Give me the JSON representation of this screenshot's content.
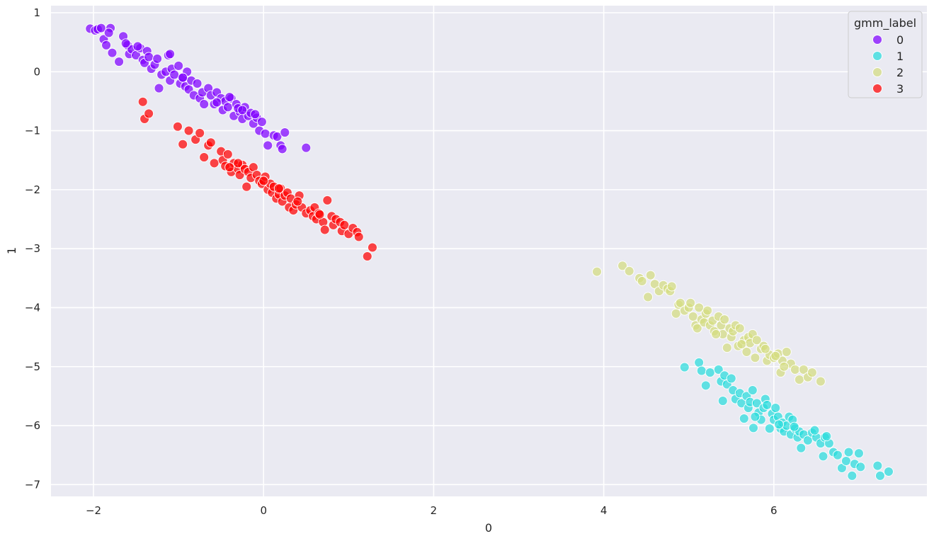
{
  "chart_data": {
    "type": "scatter",
    "xlabel": "0",
    "ylabel": "1",
    "xlim": [
      -2.5,
      7.8
    ],
    "ylim": [
      -7.2,
      1.12
    ],
    "xticks": [
      -2,
      0,
      2,
      4,
      6
    ],
    "yticks": [
      1,
      0,
      -1,
      -2,
      -3,
      -4,
      -5,
      -6,
      -7
    ],
    "grid": true,
    "legend": {
      "title": "gmm_label",
      "placement": "top-right"
    },
    "series": [
      {
        "name": "0",
        "color": "#8000ff",
        "points": [
          [
            -2.04,
            0.73
          ],
          [
            -1.98,
            0.7
          ],
          [
            -1.95,
            0.72
          ],
          [
            -1.91,
            0.74
          ],
          [
            -1.88,
            0.55
          ],
          [
            -1.85,
            0.45
          ],
          [
            -1.8,
            0.74
          ],
          [
            -1.78,
            0.32
          ],
          [
            -1.82,
            0.66
          ],
          [
            -1.7,
            0.17
          ],
          [
            -1.65,
            0.6
          ],
          [
            -1.6,
            0.45
          ],
          [
            -1.58,
            0.3
          ],
          [
            -1.55,
            0.38
          ],
          [
            -1.5,
            0.28
          ],
          [
            -1.45,
            0.4
          ],
          [
            -1.42,
            0.2
          ],
          [
            -1.4,
            0.15
          ],
          [
            -1.37,
            0.35
          ],
          [
            -1.35,
            0.25
          ],
          [
            -1.32,
            0.05
          ],
          [
            -1.28,
            0.12
          ],
          [
            -1.25,
            0.22
          ],
          [
            -1.23,
            -0.28
          ],
          [
            -1.2,
            -0.05
          ],
          [
            -1.15,
            0.0
          ],
          [
            -1.12,
            0.28
          ],
          [
            -1.1,
            -0.15
          ],
          [
            -1.08,
            0.05
          ],
          [
            -1.05,
            -0.05
          ],
          [
            -1.0,
            0.1
          ],
          [
            -0.98,
            -0.2
          ],
          [
            -0.95,
            -0.1
          ],
          [
            -0.92,
            -0.25
          ],
          [
            -0.9,
            0.0
          ],
          [
            -0.88,
            -0.3
          ],
          [
            -0.85,
            -0.15
          ],
          [
            -0.82,
            -0.4
          ],
          [
            -0.78,
            -0.2
          ],
          [
            -0.75,
            -0.45
          ],
          [
            -0.72,
            -0.35
          ],
          [
            -0.7,
            -0.55
          ],
          [
            -0.65,
            -0.28
          ],
          [
            -0.62,
            -0.4
          ],
          [
            -0.58,
            -0.55
          ],
          [
            -0.55,
            -0.35
          ],
          [
            -0.5,
            -0.45
          ],
          [
            -0.48,
            -0.65
          ],
          [
            -0.45,
            -0.5
          ],
          [
            -0.42,
            -0.6
          ],
          [
            -0.38,
            -0.45
          ],
          [
            -0.35,
            -0.75
          ],
          [
            -0.32,
            -0.55
          ],
          [
            -0.28,
            -0.68
          ],
          [
            -0.25,
            -0.8
          ],
          [
            -0.22,
            -0.6
          ],
          [
            -0.18,
            -0.75
          ],
          [
            -0.15,
            -0.7
          ],
          [
            -0.12,
            -0.88
          ],
          [
            -0.08,
            -0.78
          ],
          [
            -0.05,
            -1.0
          ],
          [
            -0.02,
            -0.85
          ],
          [
            0.02,
            -1.05
          ],
          [
            0.05,
            -1.25
          ],
          [
            0.12,
            -1.08
          ],
          [
            0.16,
            -1.1
          ],
          [
            0.2,
            -1.25
          ],
          [
            0.22,
            -1.31
          ],
          [
            0.25,
            -1.03
          ],
          [
            0.5,
            -1.29
          ],
          [
            -0.4,
            -0.43
          ],
          [
            -0.3,
            -0.62
          ],
          [
            -1.1,
            0.3
          ],
          [
            -1.48,
            0.43
          ],
          [
            -1.62,
            0.48
          ],
          [
            -0.95,
            -0.1
          ],
          [
            -0.55,
            -0.52
          ],
          [
            -0.25,
            -0.65
          ],
          [
            -0.1,
            -0.72
          ]
        ]
      },
      {
        "name": "1",
        "color": "#2adddd",
        "points": [
          [
            4.95,
            -5.01
          ],
          [
            5.12,
            -4.93
          ],
          [
            5.15,
            -5.07
          ],
          [
            5.2,
            -5.32
          ],
          [
            5.25,
            -5.1
          ],
          [
            5.35,
            -5.05
          ],
          [
            5.38,
            -5.25
          ],
          [
            5.4,
            -5.58
          ],
          [
            5.42,
            -5.15
          ],
          [
            5.45,
            -5.3
          ],
          [
            5.5,
            -5.2
          ],
          [
            5.52,
            -5.4
          ],
          [
            5.55,
            -5.55
          ],
          [
            5.6,
            -5.45
          ],
          [
            5.62,
            -5.62
          ],
          [
            5.65,
            -5.88
          ],
          [
            5.68,
            -5.5
          ],
          [
            5.7,
            -5.7
          ],
          [
            5.72,
            -5.6
          ],
          [
            5.75,
            -5.4
          ],
          [
            5.76,
            -6.04
          ],
          [
            5.8,
            -5.62
          ],
          [
            5.82,
            -5.78
          ],
          [
            5.85,
            -5.9
          ],
          [
            5.88,
            -5.7
          ],
          [
            5.9,
            -5.55
          ],
          [
            5.92,
            -5.65
          ],
          [
            5.95,
            -6.05
          ],
          [
            5.98,
            -5.8
          ],
          [
            6.0,
            -5.9
          ],
          [
            6.02,
            -5.7
          ],
          [
            6.05,
            -5.85
          ],
          [
            6.08,
            -6.05
          ],
          [
            6.1,
            -5.95
          ],
          [
            6.12,
            -6.1
          ],
          [
            6.15,
            -6.0
          ],
          [
            6.18,
            -5.85
          ],
          [
            6.2,
            -6.15
          ],
          [
            6.22,
            -5.9
          ],
          [
            6.25,
            -6.05
          ],
          [
            6.28,
            -6.2
          ],
          [
            6.3,
            -6.1
          ],
          [
            6.32,
            -6.38
          ],
          [
            6.35,
            -6.15
          ],
          [
            6.4,
            -6.25
          ],
          [
            6.45,
            -6.12
          ],
          [
            6.5,
            -6.2
          ],
          [
            6.55,
            -6.3
          ],
          [
            6.58,
            -6.52
          ],
          [
            6.6,
            -6.2
          ],
          [
            6.65,
            -6.3
          ],
          [
            6.7,
            -6.45
          ],
          [
            6.75,
            -6.5
          ],
          [
            6.8,
            -6.72
          ],
          [
            6.85,
            -6.6
          ],
          [
            6.88,
            -6.45
          ],
          [
            6.92,
            -6.85
          ],
          [
            6.95,
            -6.65
          ],
          [
            7.0,
            -6.47
          ],
          [
            7.02,
            -6.7
          ],
          [
            7.22,
            -6.68
          ],
          [
            7.25,
            -6.85
          ],
          [
            7.35,
            -6.78
          ],
          [
            5.78,
            -5.85
          ],
          [
            6.06,
            -5.98
          ],
          [
            6.24,
            -6.02
          ],
          [
            6.48,
            -6.08
          ],
          [
            6.62,
            -6.18
          ]
        ]
      },
      {
        "name": "2",
        "color": "#d4dd80",
        "points": [
          [
            3.92,
            -3.39
          ],
          [
            4.22,
            -3.29
          ],
          [
            4.3,
            -3.38
          ],
          [
            4.42,
            -3.5
          ],
          [
            4.45,
            -3.55
          ],
          [
            4.52,
            -3.82
          ],
          [
            4.55,
            -3.45
          ],
          [
            4.6,
            -3.6
          ],
          [
            4.65,
            -3.72
          ],
          [
            4.7,
            -3.62
          ],
          [
            4.75,
            -3.68
          ],
          [
            4.78,
            -3.72
          ],
          [
            4.8,
            -3.64
          ],
          [
            4.85,
            -4.1
          ],
          [
            4.88,
            -3.95
          ],
          [
            4.9,
            -3.92
          ],
          [
            4.95,
            -4.05
          ],
          [
            5.0,
            -4.0
          ],
          [
            5.02,
            -3.92
          ],
          [
            5.05,
            -4.15
          ],
          [
            5.08,
            -4.3
          ],
          [
            5.1,
            -4.35
          ],
          [
            5.12,
            -4.0
          ],
          [
            5.15,
            -4.2
          ],
          [
            5.18,
            -4.25
          ],
          [
            5.2,
            -4.1
          ],
          [
            5.22,
            -4.05
          ],
          [
            5.25,
            -4.3
          ],
          [
            5.28,
            -4.22
          ],
          [
            5.3,
            -4.4
          ],
          [
            5.35,
            -4.15
          ],
          [
            5.38,
            -4.3
          ],
          [
            5.4,
            -4.45
          ],
          [
            5.42,
            -4.2
          ],
          [
            5.45,
            -4.68
          ],
          [
            5.48,
            -4.35
          ],
          [
            5.5,
            -4.5
          ],
          [
            5.52,
            -4.4
          ],
          [
            5.55,
            -4.3
          ],
          [
            5.58,
            -4.65
          ],
          [
            5.6,
            -4.35
          ],
          [
            5.65,
            -4.55
          ],
          [
            5.68,
            -4.75
          ],
          [
            5.7,
            -4.5
          ],
          [
            5.72,
            -4.6
          ],
          [
            5.75,
            -4.45
          ],
          [
            5.78,
            -4.85
          ],
          [
            5.8,
            -4.55
          ],
          [
            5.85,
            -4.7
          ],
          [
            5.88,
            -4.65
          ],
          [
            5.92,
            -4.9
          ],
          [
            5.95,
            -4.8
          ],
          [
            6.0,
            -4.85
          ],
          [
            6.05,
            -4.78
          ],
          [
            6.08,
            -5.1
          ],
          [
            6.1,
            -4.9
          ],
          [
            6.15,
            -4.75
          ],
          [
            6.2,
            -4.95
          ],
          [
            6.25,
            -5.05
          ],
          [
            6.3,
            -5.22
          ],
          [
            6.35,
            -5.05
          ],
          [
            6.4,
            -5.18
          ],
          [
            6.45,
            -5.1
          ],
          [
            6.55,
            -5.25
          ],
          [
            5.32,
            -4.45
          ],
          [
            5.62,
            -4.62
          ],
          [
            5.9,
            -4.7
          ],
          [
            6.02,
            -4.82
          ],
          [
            6.12,
            -5.0
          ]
        ]
      },
      {
        "name": "3",
        "color": "#ff0000",
        "points": [
          [
            -1.42,
            -0.51
          ],
          [
            -1.4,
            -0.8
          ],
          [
            -1.35,
            -0.71
          ],
          [
            -1.01,
            -0.93
          ],
          [
            -0.95,
            -1.23
          ],
          [
            -0.88,
            -1.0
          ],
          [
            -0.8,
            -1.15
          ],
          [
            -0.75,
            -1.04
          ],
          [
            -0.7,
            -1.45
          ],
          [
            -0.65,
            -1.25
          ],
          [
            -0.62,
            -1.2
          ],
          [
            -0.58,
            -1.55
          ],
          [
            -0.5,
            -1.35
          ],
          [
            -0.48,
            -1.5
          ],
          [
            -0.45,
            -1.6
          ],
          [
            -0.42,
            -1.4
          ],
          [
            -0.38,
            -1.7
          ],
          [
            -0.35,
            -1.55
          ],
          [
            -0.3,
            -1.65
          ],
          [
            -0.28,
            -1.75
          ],
          [
            -0.25,
            -1.58
          ],
          [
            -0.22,
            -1.65
          ],
          [
            -0.2,
            -1.95
          ],
          [
            -0.18,
            -1.7
          ],
          [
            -0.15,
            -1.8
          ],
          [
            -0.12,
            -1.62
          ],
          [
            -0.08,
            -1.75
          ],
          [
            -0.05,
            -1.85
          ],
          [
            -0.02,
            -1.9
          ],
          [
            0.02,
            -1.78
          ],
          [
            0.05,
            -2.0
          ],
          [
            0.08,
            -1.9
          ],
          [
            0.1,
            -2.05
          ],
          [
            0.12,
            -1.95
          ],
          [
            0.15,
            -2.15
          ],
          [
            0.18,
            -2.08
          ],
          [
            0.2,
            -1.98
          ],
          [
            0.22,
            -2.2
          ],
          [
            0.25,
            -2.1
          ],
          [
            0.28,
            -2.05
          ],
          [
            0.3,
            -2.3
          ],
          [
            0.32,
            -2.15
          ],
          [
            0.35,
            -2.35
          ],
          [
            0.38,
            -2.25
          ],
          [
            0.42,
            -2.1
          ],
          [
            0.45,
            -2.3
          ],
          [
            0.5,
            -2.4
          ],
          [
            0.55,
            -2.35
          ],
          [
            0.58,
            -2.45
          ],
          [
            0.6,
            -2.3
          ],
          [
            0.62,
            -2.5
          ],
          [
            0.65,
            -2.4
          ],
          [
            0.7,
            -2.55
          ],
          [
            0.72,
            -2.68
          ],
          [
            0.75,
            -2.18
          ],
          [
            0.8,
            -2.45
          ],
          [
            0.82,
            -2.6
          ],
          [
            0.85,
            -2.5
          ],
          [
            0.9,
            -2.55
          ],
          [
            0.92,
            -2.7
          ],
          [
            0.95,
            -2.6
          ],
          [
            1.0,
            -2.75
          ],
          [
            1.05,
            -2.65
          ],
          [
            1.1,
            -2.72
          ],
          [
            1.12,
            -2.8
          ],
          [
            1.22,
            -3.13
          ],
          [
            1.28,
            -2.98
          ],
          [
            -0.3,
            -1.55
          ],
          [
            0.0,
            -1.85
          ],
          [
            0.4,
            -2.2
          ],
          [
            0.66,
            -2.42
          ],
          [
            -0.4,
            -1.62
          ],
          [
            0.18,
            -1.98
          ]
        ]
      }
    ]
  }
}
